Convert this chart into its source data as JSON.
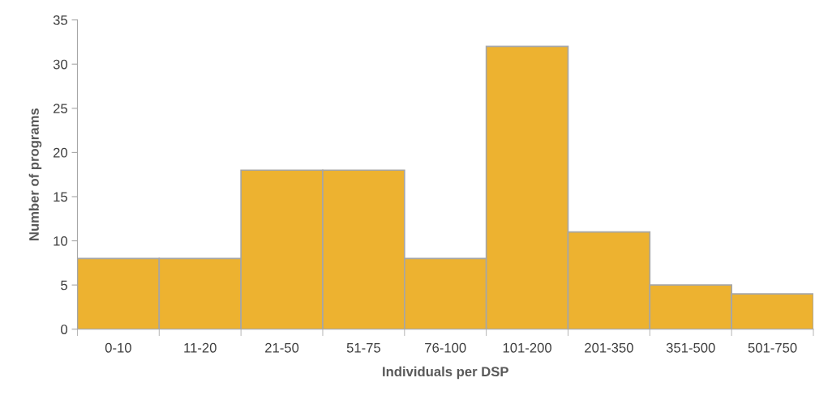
{
  "chart_data": {
    "type": "bar",
    "xlabel": "Individuals per DSP",
    "ylabel": "Number of programs",
    "categories": [
      "0-10",
      "11-20",
      "21-50",
      "51-75",
      "76-100",
      "101-200",
      "201-350",
      "351-500",
      "501-750"
    ],
    "values": [
      8,
      8,
      18,
      18,
      8,
      32,
      11,
      5,
      4
    ],
    "color": "#edb230",
    "ylim": [
      0,
      35
    ],
    "yticks": [
      0,
      5,
      10,
      15,
      20,
      25,
      30,
      35
    ],
    "grid": false,
    "legend": false
  }
}
